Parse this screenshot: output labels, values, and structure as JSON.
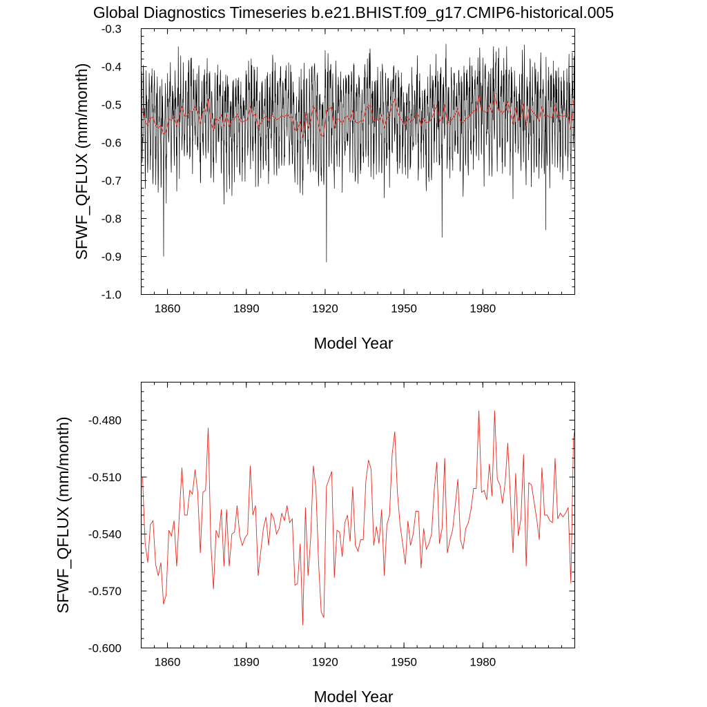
{
  "figure_title": "Global Diagnostics Timeseries b.e21.BHIST.f09_g17.CMIP6-historical.005",
  "colors": {
    "monthly_line": "#000000",
    "annual_line": "#e8281e",
    "frame": "#000000"
  },
  "chart_data": [
    {
      "type": "line",
      "title": "Global Diagnostics Timeseries b.e21.BHIST.f09_g17.CMIP6-historical.005",
      "xlabel": "Model Year",
      "ylabel": "SFWF_QFLUX (mm/month)",
      "xlim": [
        1850,
        2015
      ],
      "ylim": [
        -1.0,
        -0.3
      ],
      "xticks": [
        1860,
        1890,
        1920,
        1950,
        1980
      ],
      "xtick_labels": [
        "1860",
        "1890",
        "1920",
        "1950",
        "1980"
      ],
      "yticks": [
        -1.0,
        -0.9,
        -0.8,
        -0.7,
        -0.6,
        -0.5,
        -0.4,
        -0.3
      ],
      "ytick_labels": [
        "-1.0",
        "-0.9",
        "-0.8",
        "-0.7",
        "-0.6",
        "-0.5",
        "-0.4",
        "-0.3"
      ],
      "grid": false,
      "series": [
        {
          "name": "monthly SFWF_QFLUX",
          "color": "#000000",
          "x_start": 1850.04,
          "x_step": 0.0833,
          "generated": {
            "n": 1980,
            "seasonal_amplitude": 0.09,
            "noise": 0.07,
            "min": -0.915,
            "max": -0.34,
            "seed": 7,
            "follows": "annual mean"
          },
          "notable_extremes": [
            {
              "x": 1858.5,
              "y": -0.9
            },
            {
              "x": 1920.5,
              "y": -0.915
            },
            {
              "x": 1964.5,
              "y": -0.85
            },
            {
              "x": 1966,
              "y": -0.34
            },
            {
              "x": 2004,
              "y": -0.83
            }
          ]
        },
        {
          "name": "annual mean SFWF_QFLUX",
          "color": "#e8281e",
          "x_start": 1850.5,
          "x_step": 1,
          "values_ref": "chart_data[1].series[0].values"
        }
      ]
    },
    {
      "type": "line",
      "xlabel": "Model Year",
      "ylabel": "SFWF_QFLUX (mm/month)",
      "xlim": [
        1850,
        2015
      ],
      "ylim": [
        -0.6,
        -0.46
      ],
      "xticks": [
        1860,
        1890,
        1920,
        1950,
        1980
      ],
      "xtick_labels": [
        "1860",
        "1890",
        "1920",
        "1950",
        "1980"
      ],
      "yticks": [
        -0.6,
        -0.57,
        -0.54,
        -0.51,
        -0.48
      ],
      "ytick_labels": [
        "-0.600",
        "-0.570",
        "-0.540",
        "-0.510",
        "-0.480"
      ],
      "grid": false,
      "series": [
        {
          "name": "annual mean SFWF_QFLUX",
          "color": "#e8281e",
          "x_start": 1850.5,
          "x_step": 1,
          "values": [
            -0.51,
            -0.545,
            -0.555,
            -0.535,
            -0.533,
            -0.556,
            -0.562,
            -0.555,
            -0.577,
            -0.572,
            -0.538,
            -0.541,
            -0.533,
            -0.557,
            -0.53,
            -0.505,
            -0.53,
            -0.53,
            -0.517,
            -0.519,
            -0.506,
            -0.518,
            -0.55,
            -0.518,
            -0.517,
            -0.484,
            -0.545,
            -0.569,
            -0.538,
            -0.542,
            -0.527,
            -0.557,
            -0.527,
            -0.557,
            -0.54,
            -0.539,
            -0.525,
            -0.541,
            -0.546,
            -0.542,
            -0.54,
            -0.504,
            -0.53,
            -0.525,
            -0.562,
            -0.549,
            -0.537,
            -0.531,
            -0.546,
            -0.529,
            -0.532,
            -0.54,
            -0.537,
            -0.529,
            -0.533,
            -0.525,
            -0.534,
            -0.532,
            -0.567,
            -0.566,
            -0.545,
            -0.588,
            -0.526,
            -0.562,
            -0.542,
            -0.504,
            -0.516,
            -0.555,
            -0.581,
            -0.584,
            -0.515,
            -0.511,
            -0.507,
            -0.563,
            -0.538,
            -0.539,
            -0.552,
            -0.534,
            -0.53,
            -0.544,
            -0.515,
            -0.546,
            -0.549,
            -0.543,
            -0.543,
            -0.512,
            -0.501,
            -0.506,
            -0.546,
            -0.536,
            -0.545,
            -0.527,
            -0.562,
            -0.535,
            -0.53,
            -0.498,
            -0.486,
            -0.518,
            -0.535,
            -0.545,
            -0.556,
            -0.533,
            -0.546,
            -0.54,
            -0.528,
            -0.528,
            -0.558,
            -0.537,
            -0.548,
            -0.545,
            -0.54,
            -0.517,
            -0.502,
            -0.545,
            -0.537,
            -0.5,
            -0.55,
            -0.543,
            -0.538,
            -0.525,
            -0.511,
            -0.543,
            -0.548,
            -0.537,
            -0.534,
            -0.527,
            -0.516,
            -0.516,
            -0.475,
            -0.518,
            -0.517,
            -0.522,
            -0.503,
            -0.52,
            -0.475,
            -0.511,
            -0.514,
            -0.524,
            -0.513,
            -0.492,
            -0.521,
            -0.55,
            -0.508,
            -0.541,
            -0.532,
            -0.498,
            -0.557,
            -0.513,
            -0.514,
            -0.523,
            -0.532,
            -0.543,
            -0.505,
            -0.53,
            -0.53,
            -0.533,
            -0.534,
            -0.5,
            -0.532,
            -0.529,
            -0.531,
            -0.529,
            -0.526,
            -0.566,
            -0.49,
            -0.48,
            -0.465
          ]
        }
      ]
    }
  ]
}
